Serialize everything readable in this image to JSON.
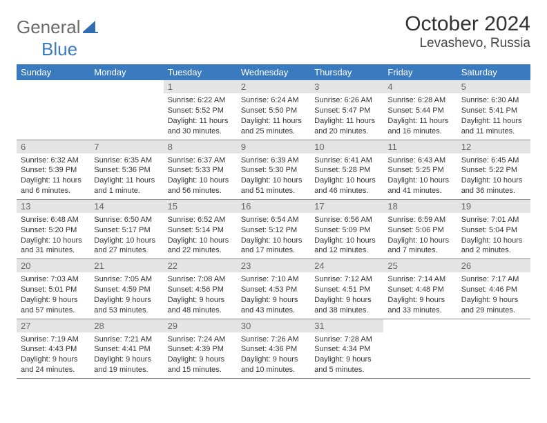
{
  "brand": {
    "general": "General",
    "blue": "Blue",
    "logo_fill": "#2f6fb0"
  },
  "title": "October 2024",
  "location": "Levashevo, Russia",
  "header_bg": "#3a7bbf",
  "daynum_bg": "#e4e4e4",
  "days_of_week": [
    "Sunday",
    "Monday",
    "Tuesday",
    "Wednesday",
    "Thursday",
    "Friday",
    "Saturday"
  ],
  "weeks": [
    [
      {
        "n": "",
        "sr": "",
        "ss": "",
        "dl": ""
      },
      {
        "n": "",
        "sr": "",
        "ss": "",
        "dl": ""
      },
      {
        "n": "1",
        "sr": "Sunrise: 6:22 AM",
        "ss": "Sunset: 5:52 PM",
        "dl": "Daylight: 11 hours and 30 minutes."
      },
      {
        "n": "2",
        "sr": "Sunrise: 6:24 AM",
        "ss": "Sunset: 5:50 PM",
        "dl": "Daylight: 11 hours and 25 minutes."
      },
      {
        "n": "3",
        "sr": "Sunrise: 6:26 AM",
        "ss": "Sunset: 5:47 PM",
        "dl": "Daylight: 11 hours and 20 minutes."
      },
      {
        "n": "4",
        "sr": "Sunrise: 6:28 AM",
        "ss": "Sunset: 5:44 PM",
        "dl": "Daylight: 11 hours and 16 minutes."
      },
      {
        "n": "5",
        "sr": "Sunrise: 6:30 AM",
        "ss": "Sunset: 5:41 PM",
        "dl": "Daylight: 11 hours and 11 minutes."
      }
    ],
    [
      {
        "n": "6",
        "sr": "Sunrise: 6:32 AM",
        "ss": "Sunset: 5:39 PM",
        "dl": "Daylight: 11 hours and 6 minutes."
      },
      {
        "n": "7",
        "sr": "Sunrise: 6:35 AM",
        "ss": "Sunset: 5:36 PM",
        "dl": "Daylight: 11 hours and 1 minute."
      },
      {
        "n": "8",
        "sr": "Sunrise: 6:37 AM",
        "ss": "Sunset: 5:33 PM",
        "dl": "Daylight: 10 hours and 56 minutes."
      },
      {
        "n": "9",
        "sr": "Sunrise: 6:39 AM",
        "ss": "Sunset: 5:30 PM",
        "dl": "Daylight: 10 hours and 51 minutes."
      },
      {
        "n": "10",
        "sr": "Sunrise: 6:41 AM",
        "ss": "Sunset: 5:28 PM",
        "dl": "Daylight: 10 hours and 46 minutes."
      },
      {
        "n": "11",
        "sr": "Sunrise: 6:43 AM",
        "ss": "Sunset: 5:25 PM",
        "dl": "Daylight: 10 hours and 41 minutes."
      },
      {
        "n": "12",
        "sr": "Sunrise: 6:45 AM",
        "ss": "Sunset: 5:22 PM",
        "dl": "Daylight: 10 hours and 36 minutes."
      }
    ],
    [
      {
        "n": "13",
        "sr": "Sunrise: 6:48 AM",
        "ss": "Sunset: 5:20 PM",
        "dl": "Daylight: 10 hours and 31 minutes."
      },
      {
        "n": "14",
        "sr": "Sunrise: 6:50 AM",
        "ss": "Sunset: 5:17 PM",
        "dl": "Daylight: 10 hours and 27 minutes."
      },
      {
        "n": "15",
        "sr": "Sunrise: 6:52 AM",
        "ss": "Sunset: 5:14 PM",
        "dl": "Daylight: 10 hours and 22 minutes."
      },
      {
        "n": "16",
        "sr": "Sunrise: 6:54 AM",
        "ss": "Sunset: 5:12 PM",
        "dl": "Daylight: 10 hours and 17 minutes."
      },
      {
        "n": "17",
        "sr": "Sunrise: 6:56 AM",
        "ss": "Sunset: 5:09 PM",
        "dl": "Daylight: 10 hours and 12 minutes."
      },
      {
        "n": "18",
        "sr": "Sunrise: 6:59 AM",
        "ss": "Sunset: 5:06 PM",
        "dl": "Daylight: 10 hours and 7 minutes."
      },
      {
        "n": "19",
        "sr": "Sunrise: 7:01 AM",
        "ss": "Sunset: 5:04 PM",
        "dl": "Daylight: 10 hours and 2 minutes."
      }
    ],
    [
      {
        "n": "20",
        "sr": "Sunrise: 7:03 AM",
        "ss": "Sunset: 5:01 PM",
        "dl": "Daylight: 9 hours and 57 minutes."
      },
      {
        "n": "21",
        "sr": "Sunrise: 7:05 AM",
        "ss": "Sunset: 4:59 PM",
        "dl": "Daylight: 9 hours and 53 minutes."
      },
      {
        "n": "22",
        "sr": "Sunrise: 7:08 AM",
        "ss": "Sunset: 4:56 PM",
        "dl": "Daylight: 9 hours and 48 minutes."
      },
      {
        "n": "23",
        "sr": "Sunrise: 7:10 AM",
        "ss": "Sunset: 4:53 PM",
        "dl": "Daylight: 9 hours and 43 minutes."
      },
      {
        "n": "24",
        "sr": "Sunrise: 7:12 AM",
        "ss": "Sunset: 4:51 PM",
        "dl": "Daylight: 9 hours and 38 minutes."
      },
      {
        "n": "25",
        "sr": "Sunrise: 7:14 AM",
        "ss": "Sunset: 4:48 PM",
        "dl": "Daylight: 9 hours and 33 minutes."
      },
      {
        "n": "26",
        "sr": "Sunrise: 7:17 AM",
        "ss": "Sunset: 4:46 PM",
        "dl": "Daylight: 9 hours and 29 minutes."
      }
    ],
    [
      {
        "n": "27",
        "sr": "Sunrise: 7:19 AM",
        "ss": "Sunset: 4:43 PM",
        "dl": "Daylight: 9 hours and 24 minutes."
      },
      {
        "n": "28",
        "sr": "Sunrise: 7:21 AM",
        "ss": "Sunset: 4:41 PM",
        "dl": "Daylight: 9 hours and 19 minutes."
      },
      {
        "n": "29",
        "sr": "Sunrise: 7:24 AM",
        "ss": "Sunset: 4:39 PM",
        "dl": "Daylight: 9 hours and 15 minutes."
      },
      {
        "n": "30",
        "sr": "Sunrise: 7:26 AM",
        "ss": "Sunset: 4:36 PM",
        "dl": "Daylight: 9 hours and 10 minutes."
      },
      {
        "n": "31",
        "sr": "Sunrise: 7:28 AM",
        "ss": "Sunset: 4:34 PM",
        "dl": "Daylight: 9 hours and 5 minutes."
      },
      {
        "n": "",
        "sr": "",
        "ss": "",
        "dl": ""
      },
      {
        "n": "",
        "sr": "",
        "ss": "",
        "dl": ""
      }
    ]
  ]
}
